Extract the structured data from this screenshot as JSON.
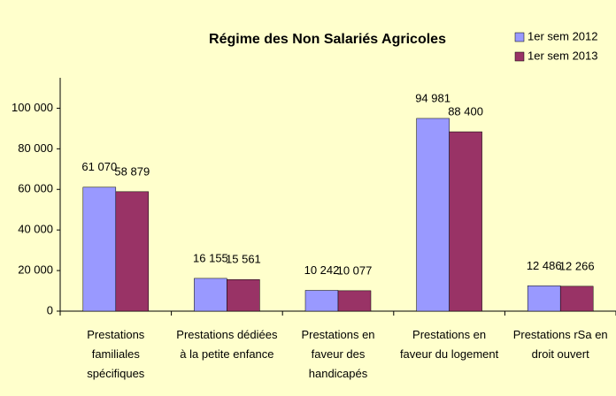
{
  "chart_data": {
    "type": "bar",
    "title": "Régime des Non Salariés Agricoles",
    "categories": [
      "Prestations familiales spécifiques",
      "Prestations dédiées à la petite enfance",
      "Prestations en faveur des handicapés",
      "Prestations en faveur du logement",
      "Prestations rSa en droit ouvert"
    ],
    "series": [
      {
        "name": "1er sem 2012",
        "color": "#9999ff",
        "values": [
          61070,
          16155,
          10242,
          94981,
          12486
        ],
        "value_labels": [
          "61 070",
          "16 155",
          "10 242",
          "94 981",
          "12 486"
        ]
      },
      {
        "name": "1er sem 2013",
        "color": "#993366",
        "values": [
          58879,
          15561,
          10077,
          88400,
          12266
        ],
        "value_labels": [
          "58 879",
          "15 561",
          "10 077",
          "88 400",
          "12 266"
        ]
      }
    ],
    "ylim": [
      0,
      115000
    ],
    "yticks": [
      0,
      {
        "value": 20000,
        "label": "20 000"
      },
      {
        "value": 40000,
        "label": "40 000"
      },
      {
        "value": 60000,
        "label": "60 000"
      },
      {
        "value": 80000,
        "label": "80 000"
      },
      {
        "value": 100000,
        "label": "100 000"
      }
    ],
    "grid": false,
    "legend": "top-right"
  }
}
